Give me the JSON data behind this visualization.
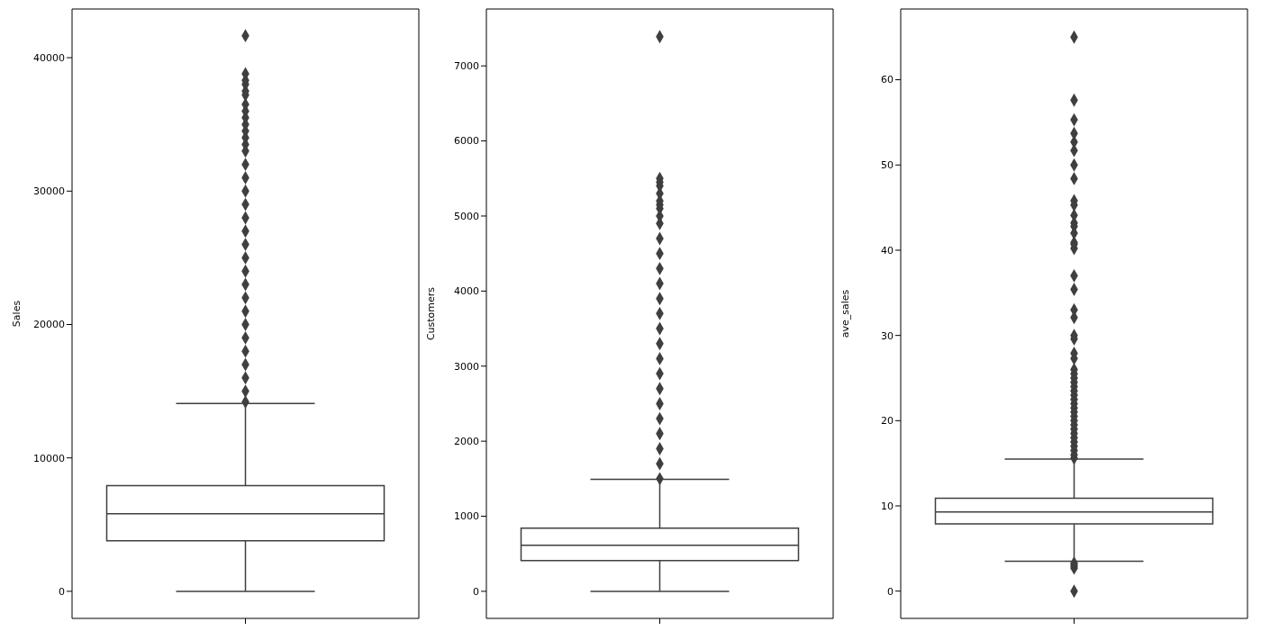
{
  "chart_data": [
    {
      "type": "box",
      "ylabel": "Sales",
      "categories": [
        null
      ],
      "ylim": [
        -2030,
        43650
      ],
      "yticks": [
        0,
        10000,
        20000,
        30000,
        40000
      ],
      "color": "#3f3f3f",
      "marker": "diamond",
      "boxes": [
        {
          "low": 0,
          "q1": 3790,
          "median": 5820,
          "q3": 7920,
          "high": 14080,
          "outliers": [
            14200,
            15000,
            16000,
            17000,
            18000,
            19000,
            20000,
            21000,
            22000,
            23000,
            24000,
            25000,
            26000,
            27000,
            28000,
            29000,
            30000,
            31000,
            32000,
            33000,
            33500,
            34000,
            34500,
            35000,
            35500,
            36000,
            36500,
            37200,
            37500,
            38000,
            38300,
            38800,
            41650
          ]
        }
      ]
    },
    {
      "type": "box",
      "ylabel": "Customers",
      "categories": [
        null
      ],
      "ylim": [
        -361,
        7758
      ],
      "yticks": [
        0,
        1000,
        2000,
        3000,
        4000,
        5000,
        6000,
        7000
      ],
      "color": "#3f3f3f",
      "marker": "diamond",
      "boxes": [
        {
          "low": 0,
          "q1": 409,
          "median": 613,
          "q3": 842,
          "high": 1491,
          "outliers": [
            1500,
            1700,
            1900,
            2100,
            2300,
            2500,
            2700,
            2900,
            3100,
            3300,
            3500,
            3700,
            3900,
            4100,
            4300,
            4500,
            4700,
            4900,
            5000,
            5100,
            5150,
            5200,
            5300,
            5400,
            5450,
            5500,
            7390
          ]
        }
      ]
    },
    {
      "type": "box",
      "ylabel": "ave_sales",
      "categories": [
        null
      ],
      "ylim": [
        -3.2,
        68.3
      ],
      "yticks": [
        0,
        10,
        20,
        30,
        40,
        50,
        60
      ],
      "color": "#3f3f3f",
      "marker": "diamond",
      "boxes": [
        {
          "low": 3.5,
          "q1": 7.9,
          "median": 9.3,
          "q3": 10.9,
          "high": 15.5,
          "outliers": [
            0,
            2.7,
            2.9,
            3.1,
            3.3,
            15.6,
            16,
            16.5,
            17,
            17.5,
            18,
            18.5,
            19,
            19.5,
            20,
            20.5,
            21,
            21.5,
            22,
            22.5,
            23,
            23.5,
            24,
            24.5,
            25,
            25.5,
            26,
            27.3,
            27.9,
            29.6,
            30,
            32.1,
            33,
            35.4,
            37,
            40.2,
            40.7,
            40.9,
            42,
            42.8,
            43.2,
            44.1,
            45.3,
            45.8,
            48.4,
            50,
            51.7,
            52.7,
            53.7,
            55.3,
            57.6,
            65
          ]
        }
      ]
    }
  ]
}
